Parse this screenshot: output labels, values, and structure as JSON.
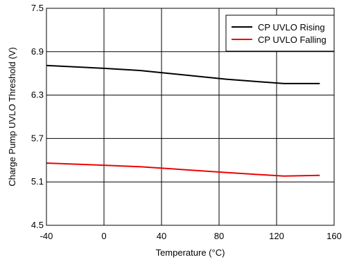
{
  "chart_data": {
    "type": "line",
    "title": "",
    "xlabel": "Temperature (°C)",
    "ylabel": "Charge Pump UVLO Threshold (V)",
    "xlim": [
      -40,
      160
    ],
    "ylim": [
      4.5,
      7.5
    ],
    "xticks": [
      -40,
      0,
      40,
      80,
      120,
      160
    ],
    "yticks": [
      4.5,
      5.1,
      5.7,
      6.3,
      6.9,
      7.5
    ],
    "xtick_labels": [
      "-40",
      "0",
      "40",
      "80",
      "120",
      "160"
    ],
    "ytick_labels": [
      "4.5",
      "5.1",
      "5.7",
      "6.3",
      "6.9",
      "7.5"
    ],
    "grid": true,
    "legend_position": "top-right",
    "series": [
      {
        "name": "CP UVLO Rising",
        "color": "#000000",
        "x": [
          -40,
          0,
          25,
          85,
          125,
          150
        ],
        "y": [
          6.71,
          6.67,
          6.64,
          6.52,
          6.46,
          6.46
        ]
      },
      {
        "name": "CP UVLO Falling",
        "color": "#ee0000",
        "x": [
          -40,
          0,
          25,
          85,
          125,
          150
        ],
        "y": [
          5.36,
          5.33,
          5.31,
          5.23,
          5.18,
          5.19
        ]
      }
    ]
  }
}
